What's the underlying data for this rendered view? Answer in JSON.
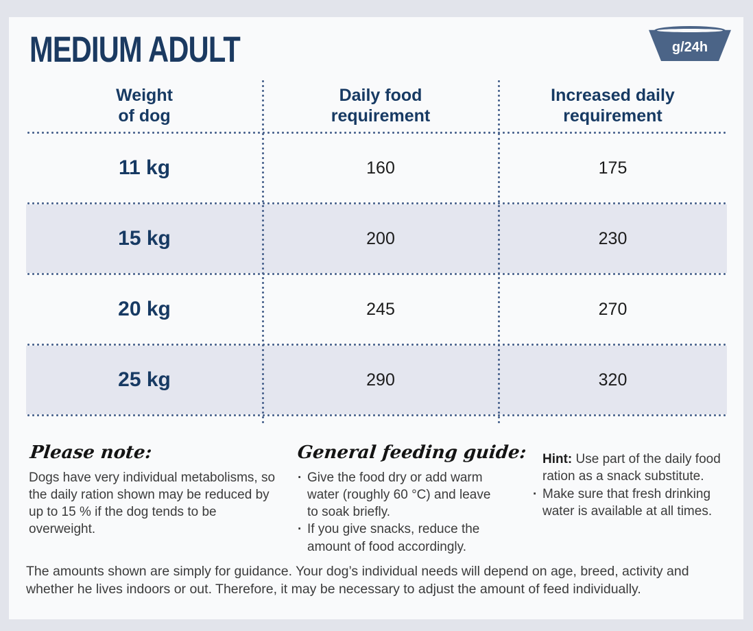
{
  "page": {
    "title": "MEDIUM ADULT",
    "unit_badge": "g/24h"
  },
  "table": {
    "headers": [
      "Weight\nof dog",
      "Daily food\nrequirement",
      "Increased daily\nrequirement"
    ],
    "rows": [
      {
        "weight": "11 kg",
        "daily": "160",
        "increased": "175"
      },
      {
        "weight": "15 kg",
        "daily": "200",
        "increased": "230"
      },
      {
        "weight": "20 kg",
        "daily": "245",
        "increased": "270"
      },
      {
        "weight": "25 kg",
        "daily": "290",
        "increased": "320"
      }
    ]
  },
  "notes": {
    "please_note": {
      "heading": "Please note:",
      "body": "Dogs have very individual metabolisms, so the daily ration shown may be reduced by up to 15 % if the dog tends to be overweight."
    },
    "feeding_guide": {
      "heading": "General feeding guide:",
      "bullets": [
        "Give the food dry or add warm water (roughly 60 °C) and leave to soak briefly.",
        "If you give snacks, reduce the amount of food accordingly."
      ]
    },
    "hint": {
      "label": "Hint:",
      "text": " Use part of the daily food ration as a snack substitute.",
      "bullets": [
        "Make sure that fresh drinking water is available at all times."
      ]
    }
  },
  "footer": {
    "text": "The amounts shown are simply for guidance. Your dog’s individual needs will depend on age, breed, activity and whether he lives indoors or out. Therefore, it may be necessary to adjust the amount of feed individually."
  },
  "colors": {
    "navy_text": "#173a63",
    "slate_blue": "#4b6487",
    "shaded_row": "#e4e6ef",
    "card_background": "#f9fafb",
    "page_background": "#e2e4eb",
    "body_text": "#3b3b3b"
  },
  "chart_data": {
    "type": "table",
    "title": "MEDIUM ADULT feeding guide (g/24h)",
    "columns": [
      "Weight of dog",
      "Daily food requirement",
      "Increased daily requirement"
    ],
    "rows": [
      [
        "11 kg",
        160,
        175
      ],
      [
        "15 kg",
        200,
        230
      ],
      [
        "20 kg",
        245,
        270
      ],
      [
        "25 kg",
        290,
        320
      ]
    ]
  }
}
